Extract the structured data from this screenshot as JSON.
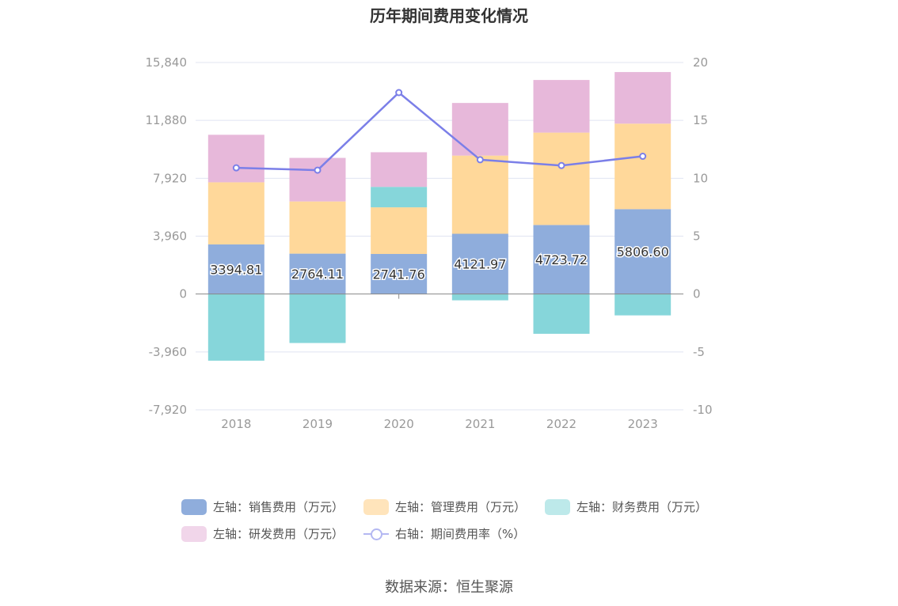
{
  "title": "历年期间费用变化情况",
  "source": "数据来源：恒生聚源",
  "chart_data": {
    "type": "bar",
    "stacked": true,
    "categories": [
      "2018",
      "2019",
      "2020",
      "2021",
      "2022",
      "2023"
    ],
    "left_axis": {
      "min": -7920,
      "max": 15840,
      "ticks": [
        -7920,
        -3960,
        0,
        3960,
        7920,
        11880,
        15840
      ],
      "tick_labels": [
        "-7,920",
        "-3,960",
        "0",
        "3,960",
        "7,920",
        "11,880",
        "15,840"
      ]
    },
    "right_axis": {
      "min": -10,
      "max": 20,
      "ticks": [
        -10,
        -5,
        0,
        5,
        10,
        15,
        20
      ],
      "tick_labels": [
        "-10",
        "-5",
        "0",
        "5",
        "10",
        "15",
        "20"
      ]
    },
    "series": [
      {
        "name": "左轴：销售费用（万元）",
        "type": "bar",
        "axis": "left",
        "color": "#8faddc",
        "values": [
          3394.81,
          2764.11,
          2741.76,
          4121.97,
          4723.72,
          5806.6
        ],
        "labels": [
          "3394.81",
          "2764.11",
          "2741.76",
          "4121.97",
          "4723.72",
          "5806.60"
        ]
      },
      {
        "name": "左轴：管理费用（万元）",
        "type": "bar",
        "axis": "left",
        "color": "#ffd89a",
        "values": [
          4250,
          3570,
          3190,
          5350,
          6320,
          5850
        ]
      },
      {
        "name": "左轴：财务费用（万元）",
        "type": "bar",
        "axis": "left",
        "color": "#86d6da",
        "values": [
          -4560,
          -3350,
          1400,
          -430,
          -2720,
          -1460
        ]
      },
      {
        "name": "左轴：研发费用（万元）",
        "type": "bar",
        "axis": "left",
        "color": "#e7b8da",
        "values": [
          3250,
          2980,
          2370,
          3600,
          3600,
          3530
        ]
      },
      {
        "name": "右轴：期间费用率（%）",
        "type": "line",
        "axis": "right",
        "color": "#7b7fe8",
        "values": [
          10.9,
          10.7,
          17.4,
          11.6,
          11.1,
          11.9
        ]
      }
    ],
    "legend": [
      {
        "label": "左轴：销售费用（万元）",
        "color": "#8faddc",
        "kind": "box"
      },
      {
        "label": "左轴：管理费用（万元）",
        "color": "#ffe4bb",
        "kind": "box"
      },
      {
        "label": "左轴：财务费用（万元）",
        "color": "#bde9ea",
        "kind": "box"
      },
      {
        "label": "左轴：研发费用（万元）",
        "color": "#f1d6ea",
        "kind": "box"
      },
      {
        "label": "右轴：期间费用率（%）",
        "color": "#b4b8f2",
        "kind": "line"
      }
    ]
  }
}
